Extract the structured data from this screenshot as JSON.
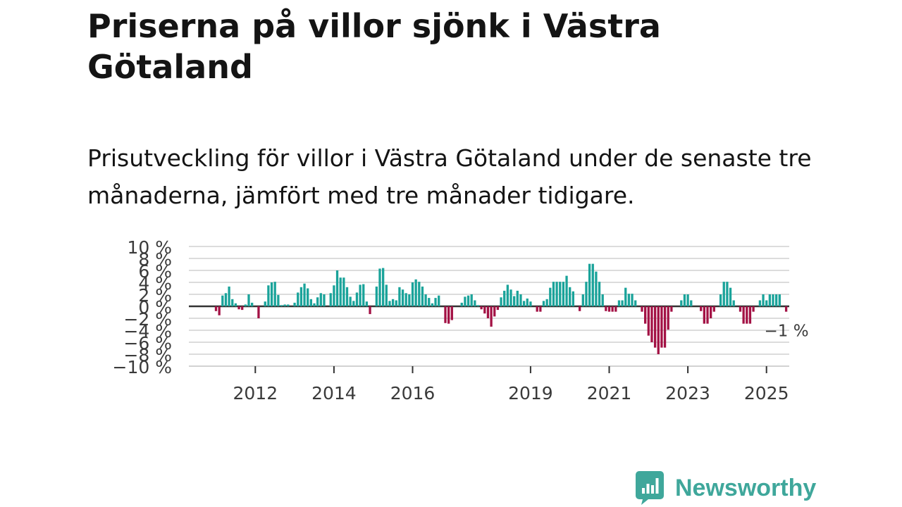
{
  "title": "Priserna på villor sjönk i Västra Götaland",
  "subtitle": "Prisutveckling för villor i Västra Götaland under de senaste tre månaderna, jämfört med tre månader tidigare.",
  "brand": {
    "name": "Newsworthy"
  },
  "colors": {
    "positive": "#1aa39a",
    "negative": "#a31245",
    "grid": "#dcdcdc",
    "zero_line": "#333333",
    "brand": "#3fa79b"
  },
  "chart_data": {
    "type": "bar",
    "series_name": "Prisutveckling för villor",
    "start_year": 2011,
    "start_month": 1,
    "values": [
      -0.8,
      -1.5,
      1.8,
      2.2,
      3.3,
      1.2,
      0.5,
      -0.5,
      -0.6,
      0.3,
      2.0,
      0.6,
      0.0,
      -2.0,
      0.0,
      0.8,
      3.5,
      4.0,
      4.1,
      1.9,
      0.2,
      0.3,
      0.3,
      0.0,
      0.6,
      2.3,
      3.2,
      3.8,
      3.0,
      1.2,
      0.5,
      1.5,
      2.2,
      2.0,
      0.0,
      2.2,
      3.5,
      6.0,
      4.8,
      4.8,
      3.2,
      1.6,
      0.9,
      2.3,
      3.6,
      3.7,
      0.8,
      -1.3,
      0.0,
      3.3,
      6.3,
      6.4,
      3.6,
      0.9,
      1.2,
      1.0,
      3.2,
      2.8,
      2.2,
      2.0,
      4.0,
      4.5,
      4.1,
      3.3,
      2.0,
      1.4,
      0.5,
      1.4,
      1.8,
      0.0,
      -2.8,
      -2.9,
      -2.3,
      0.0,
      0.0,
      0.6,
      1.6,
      1.8,
      2.0,
      1.0,
      0.2,
      -0.5,
      -1.2,
      -2.0,
      -3.4,
      -1.7,
      -0.6,
      1.5,
      2.6,
      3.6,
      2.8,
      1.7,
      2.6,
      2.0,
      0.9,
      1.3,
      0.8,
      0.0,
      -0.9,
      -0.9,
      0.9,
      1.2,
      3.1,
      4.1,
      4.1,
      4.1,
      4.1,
      5.1,
      3.2,
      2.5,
      0.0,
      -0.8,
      2.0,
      4.1,
      7.1,
      7.1,
      5.8,
      4.1,
      2.0,
      -0.8,
      -0.9,
      -0.9,
      -0.9,
      1.0,
      1.0,
      3.1,
      2.1,
      2.1,
      1.0,
      0.0,
      -0.9,
      -2.9,
      -4.9,
      -6.0,
      -6.9,
      -8.0,
      -6.9,
      -6.9,
      -3.9,
      -0.9,
      0.0,
      0.0,
      1.0,
      2.0,
      2.0,
      1.0,
      0.0,
      0.0,
      -0.8,
      -2.9,
      -2.9,
      -2.0,
      -0.9,
      0.0,
      2.0,
      4.1,
      4.1,
      3.1,
      1.0,
      0.0,
      -0.9,
      -2.9,
      -2.9,
      -2.9,
      -0.9,
      0.0,
      1.0,
      2.0,
      1.0,
      2.0,
      2.0,
      2.0,
      2.0,
      0.0,
      -0.9
    ],
    "y_ticks": [
      {
        "value": 10,
        "label": "10 %"
      },
      {
        "value": 8,
        "label": "8 %"
      },
      {
        "value": 6,
        "label": "6 %"
      },
      {
        "value": 4,
        "label": "4 %"
      },
      {
        "value": 2,
        "label": "2 %"
      },
      {
        "value": 0,
        "label": "0 %"
      },
      {
        "value": -2,
        "label": "−2 %"
      },
      {
        "value": -4,
        "label": "−4 %"
      },
      {
        "value": -6,
        "label": "−6 %"
      },
      {
        "value": -8,
        "label": "−8 %"
      },
      {
        "value": -10,
        "label": "−10 %"
      }
    ],
    "x_ticks": [
      {
        "year": 2012,
        "label": "2012"
      },
      {
        "year": 2014,
        "label": "2014"
      },
      {
        "year": 2016,
        "label": "2016"
      },
      {
        "year": 2019,
        "label": "2019"
      },
      {
        "year": 2021,
        "label": "2021"
      },
      {
        "year": 2023,
        "label": "2023"
      },
      {
        "year": 2025,
        "label": "2025"
      }
    ],
    "ylim": [
      -10,
      10
    ],
    "last_value_label": "−1 %",
    "last_value": -1,
    "xlabel": "",
    "ylabel": ""
  }
}
